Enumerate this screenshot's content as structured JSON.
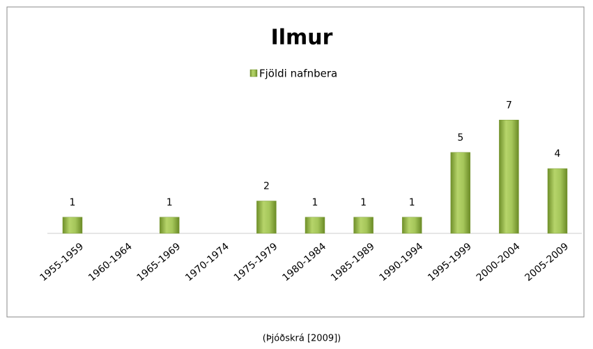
{
  "chart_data": {
    "type": "bar",
    "title": "Ilmur",
    "categories": [
      "1955-1959",
      "1960-1964",
      "1965-1969",
      "1970-1974",
      "1975-1979",
      "1980-1984",
      "1985-1989",
      "1990-1994",
      "1995-1999",
      "2000-2004",
      "2005-2009"
    ],
    "series": [
      {
        "name": "Fjöldi nafnbera",
        "color": "#9bbb59",
        "values": [
          1,
          null,
          1,
          null,
          2,
          1,
          1,
          1,
          5,
          7,
          4
        ]
      }
    ],
    "ylim": [
      0,
      8
    ]
  },
  "caption": "(Þjóðskrá [2009])"
}
